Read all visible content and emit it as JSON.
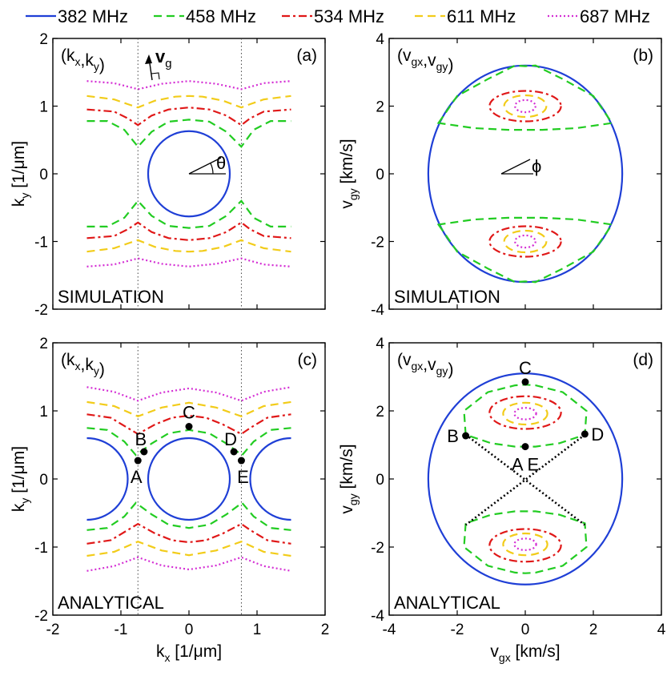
{
  "legend": [
    {
      "label": "382 MHz",
      "color": "#1f3fd6",
      "dash": "solid"
    },
    {
      "label": "458 MHz",
      "color": "#22cc22",
      "dash": "dash"
    },
    {
      "label": "534 MHz",
      "color": "#e01818",
      "dash": "dashdot"
    },
    {
      "label": "611 MHz",
      "color": "#f2cc1a",
      "dash": "dash"
    },
    {
      "label": "687 MHz",
      "color": "#d42ed4",
      "dash": "dot"
    }
  ],
  "chart_data": [
    {
      "id": "a",
      "type": "line",
      "panel_label": "(a)",
      "corner_label": "(kx,ky)",
      "method_label": "SIMULATION",
      "xlim": [
        -2,
        2
      ],
      "ylim": [
        -2,
        2
      ],
      "xticks": [
        "-2",
        "-1",
        "0",
        "1",
        "2"
      ],
      "yticks": [
        "-2",
        "-1",
        "0",
        "1",
        "2"
      ],
      "xticks_shown": false,
      "xlabel": "",
      "ylabel": "ky [1/μm]",
      "vlines": [
        -0.75,
        0.77
      ],
      "annotation_vg": "vg",
      "annotation_theta": "θ",
      "bands": [
        {
          "name": "458 MHz",
          "points": [
            [
              -1.5,
              0.78
            ],
            [
              -1.2,
              0.78
            ],
            [
              -0.95,
              0.65
            ],
            [
              -0.75,
              0.4
            ],
            [
              -0.55,
              0.62
            ],
            [
              -0.3,
              0.77
            ],
            [
              0,
              0.8
            ],
            [
              0.3,
              0.77
            ],
            [
              0.55,
              0.62
            ],
            [
              0.77,
              0.4
            ],
            [
              0.95,
              0.65
            ],
            [
              1.2,
              0.78
            ],
            [
              1.5,
              0.78
            ]
          ]
        },
        {
          "name": "534 MHz",
          "points": [
            [
              -1.5,
              0.95
            ],
            [
              -1.1,
              0.92
            ],
            [
              -0.9,
              0.82
            ],
            [
              -0.75,
              0.72
            ],
            [
              -0.55,
              0.86
            ],
            [
              -0.3,
              0.95
            ],
            [
              0,
              0.98
            ],
            [
              0.3,
              0.95
            ],
            [
              0.55,
              0.86
            ],
            [
              0.77,
              0.72
            ],
            [
              0.9,
              0.82
            ],
            [
              1.1,
              0.92
            ],
            [
              1.5,
              0.95
            ]
          ]
        },
        {
          "name": "611 MHz",
          "points": [
            [
              -1.5,
              1.15
            ],
            [
              -1.1,
              1.1
            ],
            [
              -0.9,
              1.03
            ],
            [
              -0.75,
              0.98
            ],
            [
              -0.5,
              1.08
            ],
            [
              -0.2,
              1.14
            ],
            [
              0,
              1.15
            ],
            [
              0.2,
              1.14
            ],
            [
              0.5,
              1.08
            ],
            [
              0.77,
              0.98
            ],
            [
              0.9,
              1.03
            ],
            [
              1.1,
              1.1
            ],
            [
              1.5,
              1.15
            ]
          ]
        },
        {
          "name": "687 MHz",
          "points": [
            [
              -1.5,
              1.37
            ],
            [
              -1.1,
              1.34
            ],
            [
              -0.75,
              1.25
            ],
            [
              -0.4,
              1.33
            ],
            [
              0,
              1.37
            ],
            [
              0.4,
              1.33
            ],
            [
              0.77,
              1.25
            ],
            [
              1.1,
              1.34
            ],
            [
              1.5,
              1.37
            ]
          ]
        }
      ],
      "circle": {
        "name": "382 MHz",
        "cx": 0,
        "cy": 0,
        "rx": 0.6,
        "ry": 0.63
      }
    },
    {
      "id": "b",
      "type": "line",
      "panel_label": "(b)",
      "corner_label": "(vgx,vgy)",
      "method_label": "SIMULATION",
      "xlim": [
        -4,
        4
      ],
      "ylim": [
        -4,
        4
      ],
      "xticks": [
        "-4",
        "-2",
        "0",
        "2",
        "4"
      ],
      "yticks": [
        "-4",
        "-2",
        "0",
        "2",
        "4"
      ],
      "xticks_shown": false,
      "xlabel": "",
      "ylabel": "vgy [km/s]",
      "annotation_phi": "ϕ",
      "outer": {
        "name": "382 MHz",
        "rx": 2.85,
        "ry": 3.2
      },
      "lobes": [
        {
          "name": "458 MHz",
          "points": [
            [
              -2.55,
              1.5
            ],
            [
              -2.0,
              2.3
            ],
            [
              -1.1,
              2.8
            ],
            [
              -0.3,
              3.2
            ],
            [
              0,
              3.18
            ],
            [
              0.3,
              3.2
            ],
            [
              1.1,
              2.8
            ],
            [
              2.0,
              2.3
            ],
            [
              2.55,
              1.5
            ],
            [
              1.5,
              1.35
            ],
            [
              0.5,
              1.3
            ],
            [
              0,
              1.3
            ],
            [
              -0.5,
              1.3
            ],
            [
              -1.5,
              1.35
            ],
            [
              -2.55,
              1.5
            ]
          ]
        },
        {
          "name": "534 MHz",
          "rx": 1.05,
          "ry": 0.45,
          "cy": 2.0
        },
        {
          "name": "611 MHz",
          "rx": 0.62,
          "ry": 0.32,
          "cy": 2.0
        },
        {
          "name": "687 MHz",
          "rx": 0.3,
          "ry": 0.18,
          "cy": 2.0
        }
      ]
    },
    {
      "id": "c",
      "type": "line",
      "panel_label": "(c)",
      "corner_label": "(kx,ky)",
      "method_label": "ANALYTICAL",
      "xlim": [
        -2,
        2
      ],
      "ylim": [
        -2,
        2
      ],
      "xticks": [
        "-2",
        "-1",
        "0",
        "1",
        "2"
      ],
      "yticks": [
        "-2",
        "-1",
        "0",
        "1",
        "2"
      ],
      "xticks_shown": true,
      "xlabel": "kx [1/μm]",
      "ylabel": "ky [1/μm]",
      "vlines": [
        -0.75,
        0.77
      ],
      "bands": [
        {
          "name": "458 MHz",
          "points": [
            [
              -1.5,
              0.75
            ],
            [
              -1.2,
              0.72
            ],
            [
              -0.95,
              0.55
            ],
            [
              -0.78,
              0.35
            ],
            [
              -0.55,
              0.52
            ],
            [
              -0.3,
              0.67
            ],
            [
              0,
              0.72
            ],
            [
              0.3,
              0.67
            ],
            [
              0.55,
              0.52
            ],
            [
              0.78,
              0.35
            ],
            [
              0.95,
              0.55
            ],
            [
              1.2,
              0.72
            ],
            [
              1.5,
              0.75
            ]
          ]
        },
        {
          "name": "534 MHz",
          "points": [
            [
              -1.5,
              0.95
            ],
            [
              -1.15,
              0.9
            ],
            [
              -0.9,
              0.75
            ],
            [
              -0.75,
              0.66
            ],
            [
              -0.5,
              0.8
            ],
            [
              -0.25,
              0.9
            ],
            [
              0,
              0.93
            ],
            [
              0.25,
              0.9
            ],
            [
              0.5,
              0.8
            ],
            [
              0.77,
              0.66
            ],
            [
              0.9,
              0.75
            ],
            [
              1.15,
              0.9
            ],
            [
              1.5,
              0.95
            ]
          ]
        },
        {
          "name": "611 MHz",
          "points": [
            [
              -1.5,
              1.13
            ],
            [
              -1.1,
              1.07
            ],
            [
              -0.75,
              0.92
            ],
            [
              -0.4,
              1.05
            ],
            [
              0,
              1.12
            ],
            [
              0.4,
              1.05
            ],
            [
              0.77,
              0.92
            ],
            [
              1.1,
              1.07
            ],
            [
              1.5,
              1.13
            ]
          ]
        },
        {
          "name": "687 MHz",
          "points": [
            [
              -1.5,
              1.35
            ],
            [
              -1.1,
              1.28
            ],
            [
              -0.75,
              1.15
            ],
            [
              -0.4,
              1.27
            ],
            [
              0,
              1.33
            ],
            [
              0.4,
              1.27
            ],
            [
              0.77,
              1.15
            ],
            [
              1.1,
              1.28
            ],
            [
              1.5,
              1.35
            ]
          ]
        }
      ],
      "circle": {
        "name": "382 MHz",
        "cx": 0,
        "cy": 0,
        "rx": 0.6,
        "ry": 0.6
      },
      "side_arcs": [
        {
          "cx": -1.5,
          "r": 0.6
        },
        {
          "cx": 1.5,
          "r": 0.6
        }
      ],
      "points": [
        {
          "label": "A",
          "x": -0.75,
          "y": 0.27
        },
        {
          "label": "B",
          "x": -0.66,
          "y": 0.4
        },
        {
          "label": "C",
          "x": 0.0,
          "y": 0.77
        },
        {
          "label": "D",
          "x": 0.66,
          "y": 0.4
        },
        {
          "label": "E",
          "x": 0.77,
          "y": 0.27
        }
      ]
    },
    {
      "id": "d",
      "type": "line",
      "panel_label": "(d)",
      "corner_label": "(vgx,vgy)",
      "method_label": "ANALYTICAL",
      "xlim": [
        -4,
        4
      ],
      "ylim": [
        -4,
        4
      ],
      "xticks": [
        "-4",
        "-2",
        "0",
        "2",
        "4"
      ],
      "yticks": [
        "-4",
        "-2",
        "0",
        "2",
        "4"
      ],
      "xticks_shown": true,
      "xlabel": "vgx [km/s]",
      "ylabel": "vgy [km/s]",
      "outer": {
        "name": "382 MHz",
        "rx": 2.85,
        "ry": 3.1
      },
      "lobes": [
        {
          "name": "458 MHz",
          "points": [
            [
              -1.75,
              1.3
            ],
            [
              -1.8,
              2.0
            ],
            [
              -1.1,
              2.55
            ],
            [
              -0.3,
              2.75
            ],
            [
              0,
              2.77
            ],
            [
              0.3,
              2.75
            ],
            [
              1.1,
              2.55
            ],
            [
              1.8,
              2.0
            ],
            [
              1.75,
              1.3
            ],
            [
              1.0,
              1.05
            ],
            [
              0.3,
              0.95
            ],
            [
              0,
              0.95
            ],
            [
              -0.3,
              0.95
            ],
            [
              -1.0,
              1.05
            ],
            [
              -1.75,
              1.3
            ]
          ]
        },
        {
          "name": "534 MHz",
          "rx": 1.05,
          "ry": 0.48,
          "cy": 1.95
        },
        {
          "name": "611 MHz",
          "rx": 0.65,
          "ry": 0.32,
          "cy": 1.92
        },
        {
          "name": "687 MHz",
          "rx": 0.32,
          "ry": 0.17,
          "cy": 1.92
        }
      ],
      "cross": [
        [
          [
            -1.75,
            1.3
          ],
          [
            1.75,
            -1.35
          ]
        ],
        [
          [
            1.75,
            1.3
          ],
          [
            -1.75,
            -1.35
          ]
        ]
      ],
      "points": [
        {
          "label": "B",
          "x": -1.75,
          "y": 1.27
        },
        {
          "label": "C",
          "x": 0.0,
          "y": 2.85
        },
        {
          "label": "D",
          "x": 1.75,
          "y": 1.32
        },
        {
          "label": "AE",
          "x": 0.0,
          "y": 0.95
        }
      ]
    }
  ]
}
